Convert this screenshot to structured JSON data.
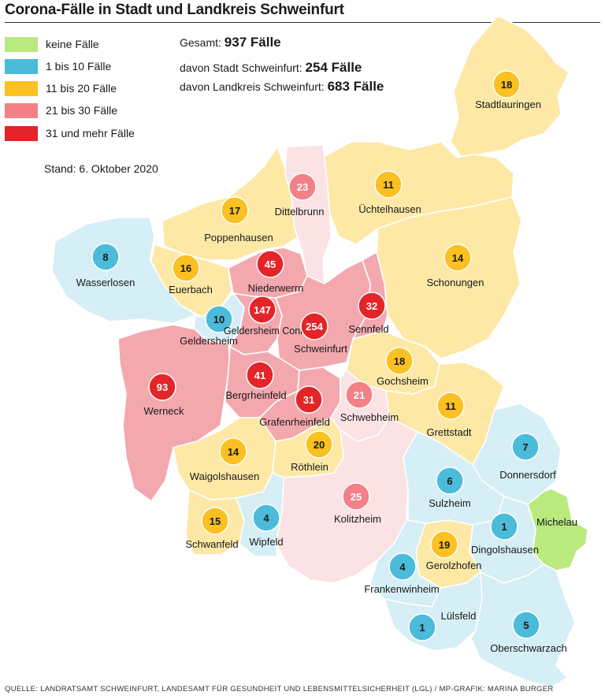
{
  "title": "Corona-Fälle in Stadt und Landkreis Schweinfurt",
  "legend": [
    {
      "label": "keine Fälle",
      "color": "#b9ea7d"
    },
    {
      "label": "1 bis 10 Fälle",
      "color": "#4bbbd9"
    },
    {
      "label": "11 bis 20 Fälle",
      "color": "#fbc021"
    },
    {
      "label": "21 bis 30 Fälle",
      "color": "#f38087"
    },
    {
      "label": "31 und mehr Fälle",
      "color": "#e3252a"
    }
  ],
  "stand": "Stand: 6. Oktober 2020",
  "totals": [
    {
      "label": "Gesamt:",
      "value": "937 Fälle"
    },
    {
      "label": "davon Stadt Schweinfurt:",
      "value": "254 Fälle"
    },
    {
      "label": "davon Landkreis Schweinfurt:",
      "value": "683 Fälle"
    }
  ],
  "municipalities": [
    {
      "id": "stadtlauringen",
      "name": "Stadtlauringen",
      "value": "18",
      "category": 2
    },
    {
      "id": "dittelbrunn",
      "name": "Dittelbrunn",
      "value": "23",
      "category": 3
    },
    {
      "id": "uechtelhausen",
      "name": "Üchtelhausen",
      "value": "11",
      "category": 2
    },
    {
      "id": "poppenhausen",
      "name": "Poppenhausen",
      "value": "17",
      "category": 2
    },
    {
      "id": "wasserlosen",
      "name": "Wasserlosen",
      "value": "8",
      "category": 1
    },
    {
      "id": "euerbach",
      "name": "Euerbach",
      "value": "16",
      "category": 2
    },
    {
      "id": "niederwerrn",
      "name": "Niederwerrn",
      "value": "45",
      "category": 4
    },
    {
      "id": "schonungen",
      "name": "Schonungen",
      "value": "14",
      "category": 2
    },
    {
      "id": "geldersheim",
      "name": "Geldersheim",
      "value": "10",
      "category": 1
    },
    {
      "id": "geldersheim-conn",
      "name": "Geldersheim Conn",
      "value": "147",
      "category": 4
    },
    {
      "id": "schweinfurt",
      "name": "Schweinfurt",
      "value": "254",
      "category": 4
    },
    {
      "id": "sennfeld",
      "name": "Sennfeld",
      "value": "32",
      "category": 4
    },
    {
      "id": "gochsheim",
      "name": "Gochsheim",
      "value": "18",
      "category": 2
    },
    {
      "id": "werneck",
      "name": "Werneck",
      "value": "93",
      "category": 4
    },
    {
      "id": "bergrheinfeld",
      "name": "Bergrheinfeld",
      "value": "41",
      "category": 4
    },
    {
      "id": "schwebheim",
      "name": "Schwebheim",
      "value": "21",
      "category": 3
    },
    {
      "id": "grafenrheinfeld",
      "name": "Grafenrheinfeld",
      "value": "31",
      "category": 4
    },
    {
      "id": "grettstadt",
      "name": "Grettstadt",
      "value": "11",
      "category": 2
    },
    {
      "id": "donnersdorf",
      "name": "Donnersdorf",
      "value": "7",
      "category": 1
    },
    {
      "id": "waigolshausen",
      "name": "Waigolshausen",
      "value": "14",
      "category": 2
    },
    {
      "id": "roethlein",
      "name": "Röthlein",
      "value": "20",
      "category": 2
    },
    {
      "id": "sulzheim",
      "name": "Sulzheim",
      "value": "6",
      "category": 1
    },
    {
      "id": "kolitzheim",
      "name": "Kolitzheim",
      "value": "25",
      "category": 3
    },
    {
      "id": "michelau",
      "name": "Michelau",
      "value": "",
      "category": 0
    },
    {
      "id": "dingolshausen",
      "name": "Dingolshausen",
      "value": "1",
      "category": 1
    },
    {
      "id": "schwanfeld",
      "name": "Schwanfeld",
      "value": "15",
      "category": 2
    },
    {
      "id": "wipfeld",
      "name": "Wipfeld",
      "value": "4",
      "category": 1
    },
    {
      "id": "gerolzhofen",
      "name": "Gerolzhofen",
      "value": "19",
      "category": 2
    },
    {
      "id": "frankenwinheim",
      "name": "Frankenwinheim",
      "value": "4",
      "category": 1
    },
    {
      "id": "luelsfeld",
      "name": "Lülsfeld",
      "value": "1",
      "category": 1
    },
    {
      "id": "oberschwarzach",
      "name": "Oberschwarzach",
      "value": "5",
      "category": 1
    }
  ],
  "source": "QUELLE: LANDRATSAMT SCHWEINFURT, LANDESAMT FÜR GESUNDHEIT UND LEBENSMITTELSICHERHEIT (LGL) / MP-GRAFIK: MARINA BURGER"
}
